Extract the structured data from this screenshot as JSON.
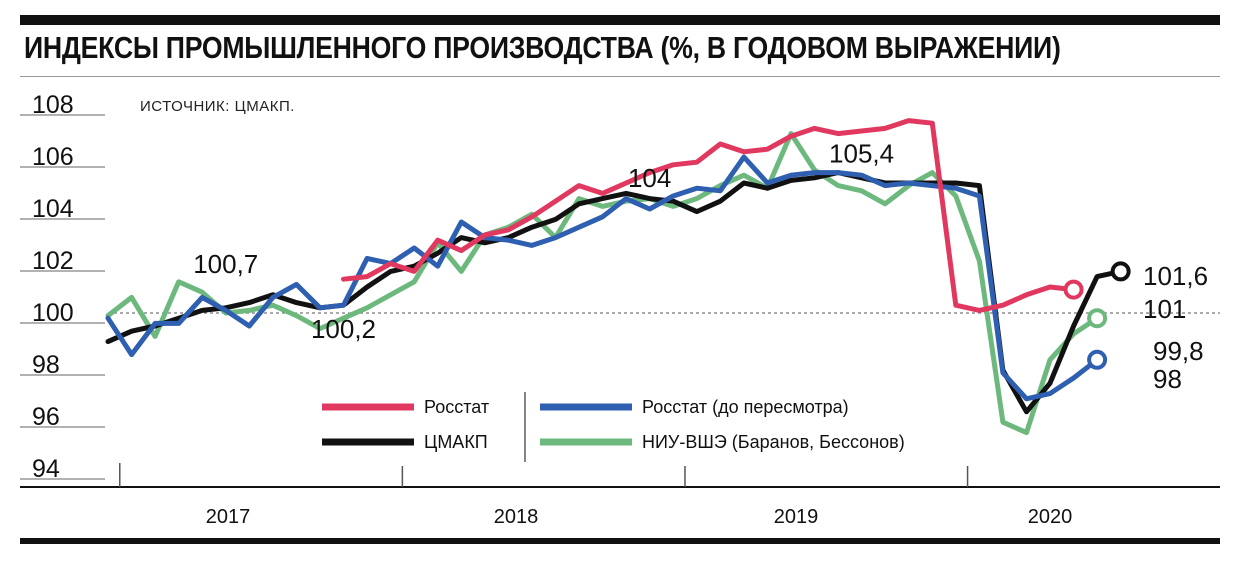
{
  "title": "ИНДЕКСЫ ПРОМЫШЛЕННОГО ПРОИЗВОДСТВА (%, В ГОДОВОМ ВЫРАЖЕНИИ)",
  "source": "ИСТОЧНИК: ЦМАКП.",
  "chart_data": {
    "type": "line",
    "title": "ИНДЕКСЫ ПРОМЫШЛЕННОГО ПРОИЗВОДСТВА (%, В ГОДОВОМ ВЫРАЖЕНИИ)",
    "xlabel": "",
    "ylabel": "",
    "ylim": [
      94,
      108
    ],
    "yticks": [
      108,
      106,
      104,
      102,
      100,
      98,
      96,
      94
    ],
    "x_start": "2016-12",
    "year_labels": [
      "2017",
      "2018",
      "2019",
      "2020"
    ],
    "reference_line": 100,
    "grid": false,
    "legend_position": "bottom-center",
    "series": [
      {
        "name": "Росстат",
        "color": "#e0385f",
        "start_index": 10,
        "values": [
          101.3,
          101.4,
          101.9,
          101.6,
          102.8,
          102.4,
          103.0,
          103.2,
          103.7,
          104.3,
          104.9,
          104.6,
          105.0,
          105.4,
          105.7,
          105.8,
          106.5,
          106.2,
          106.3,
          106.8,
          107.1,
          106.9,
          107.0,
          107.1,
          107.4,
          107.3,
          100.3,
          100.1,
          100.3,
          100.7,
          101.0,
          100.9
        ]
      },
      {
        "name": "Росстат (до пересмотра)",
        "color": "#2f5fb0",
        "start_index": 0,
        "values": [
          99.8,
          98.4,
          99.6,
          99.6,
          100.6,
          100.1,
          99.5,
          100.6,
          101.1,
          100.2,
          100.3,
          102.1,
          101.9,
          102.5,
          101.8,
          103.5,
          102.9,
          102.8,
          102.6,
          102.9,
          103.3,
          103.7,
          104.4,
          104.0,
          104.5,
          104.8,
          104.7,
          106.0,
          105.0,
          105.3,
          105.4,
          105.4,
          105.3,
          104.9,
          105.0,
          104.9,
          104.8,
          104.5,
          97.7,
          96.7,
          96.9,
          97.5,
          98.2
        ]
      },
      {
        "name": "ЦМАКП",
        "color": "#111111",
        "start_index": 0,
        "values": [
          98.9,
          99.3,
          99.5,
          99.8,
          100.1,
          100.2,
          100.4,
          100.7,
          100.4,
          100.2,
          100.3,
          101.0,
          101.6,
          101.8,
          102.3,
          102.9,
          102.7,
          102.9,
          103.3,
          103.6,
          104.2,
          104.4,
          104.6,
          104.4,
          104.3,
          103.9,
          104.3,
          105.0,
          104.8,
          105.1,
          105.2,
          105.4,
          105.2,
          105.0,
          105.0,
          105.0,
          105.0,
          104.9,
          97.8,
          96.2,
          97.3,
          99.5,
          101.4,
          101.6
        ]
      },
      {
        "name": "НИУ-ВШЭ (Баранов, Бессонов)",
        "color": "#6cb87d",
        "start_index": 0,
        "values": [
          99.9,
          100.6,
          99.1,
          101.2,
          100.8,
          100.0,
          100.1,
          100.3,
          99.9,
          99.4,
          99.8,
          100.2,
          100.7,
          101.2,
          102.7,
          101.6,
          103.0,
          103.3,
          103.8,
          102.9,
          104.4,
          104.1,
          104.3,
          104.4,
          104.1,
          104.4,
          104.9,
          105.3,
          104.8,
          106.9,
          105.5,
          104.9,
          104.7,
          104.2,
          104.9,
          105.4,
          104.5,
          102.0,
          95.8,
          95.4,
          98.2,
          99.2,
          99.8
        ]
      }
    ],
    "annotations": [
      {
        "text": "100,7",
        "x_index": 8,
        "y": 100.7
      },
      {
        "text": "100,2",
        "x_index": 10,
        "y": 100.2
      },
      {
        "text": "104",
        "x_index": 23,
        "y": 104
      },
      {
        "text": "105,4",
        "x_index": 31,
        "y": 105.4
      }
    ],
    "end_labels": [
      {
        "series": "ЦМАКП",
        "text": "101,6"
      },
      {
        "series": "Росстат",
        "text": "101"
      },
      {
        "series": "НИУ-ВШЭ (Баранов, Бессонов)",
        "text": "99,8"
      },
      {
        "series": "Росстат (до пересмотра)",
        "text": "98"
      }
    ]
  }
}
